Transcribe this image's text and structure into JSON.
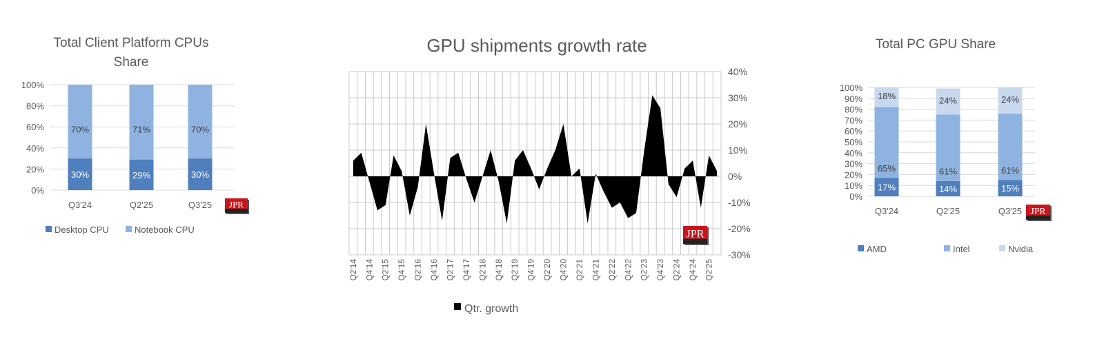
{
  "colors": {
    "dark_blue": "#4f7fbd",
    "mid_blue": "#8fb3e0",
    "light_blue": "#c7d8ef",
    "area": "#000000",
    "grid": "#c8c8c8",
    "logo_red": "#c8161d"
  },
  "logo_text": "JPR",
  "chart_data": [
    {
      "type": "bar",
      "stacked": true,
      "title": "Total Client Platform CPUs Share",
      "title_lines": [
        "Total Client Platform CPUs",
        "Share"
      ],
      "categories": [
        "Q3'24",
        "Q2'25",
        "Q3'25"
      ],
      "ylim": [
        0,
        100
      ],
      "yticks": [
        "0%",
        "20%",
        "40%",
        "60%",
        "80%",
        "100%"
      ],
      "grid": true,
      "legend_position": "bottom",
      "series": [
        {
          "name": "Desktop CPU",
          "values": [
            30,
            29,
            30
          ],
          "labels": [
            "30%",
            "29%",
            "30%"
          ],
          "color": "#4f7fbd"
        },
        {
          "name": "Notebook CPU",
          "values": [
            70,
            71,
            70
          ],
          "labels": [
            "70%",
            "71%",
            "70%"
          ],
          "color": "#8fb3e0"
        }
      ]
    },
    {
      "type": "area",
      "title": "GPU shipments growth rate",
      "x": [
        "Q2'14",
        "Q3'14",
        "Q4'14",
        "Q1'15",
        "Q2'15",
        "Q3'15",
        "Q4'15",
        "Q1'16",
        "Q2'16",
        "Q3'16",
        "Q4'16",
        "Q1'17",
        "Q2'17",
        "Q3'17",
        "Q4'17",
        "Q1'18",
        "Q2'18",
        "Q3'18",
        "Q4'18",
        "Q1'19",
        "Q2'19",
        "Q3'19",
        "Q4'19",
        "Q1'20",
        "Q2'20",
        "Q3'20",
        "Q4'20",
        "Q1'21",
        "Q2'21",
        "Q3'21",
        "Q4'21",
        "Q1'22",
        "Q2'22",
        "Q3'22",
        "Q4'22",
        "Q1'23",
        "Q2'23",
        "Q3'23",
        "Q4'23",
        "Q1'24",
        "Q2'24",
        "Q3'24",
        "Q4'24",
        "Q1'25",
        "Q2'25",
        "Q3'25"
      ],
      "xtick_labels": [
        "Q2'14",
        "Q4'14",
        "Q2'15",
        "Q4'15",
        "Q2'16",
        "Q4'16",
        "Q2'17",
        "Q4'17",
        "Q2'18",
        "Q4'18",
        "Q2'19",
        "Q4'19",
        "Q2'20",
        "Q4'20",
        "Q2'21",
        "Q4'21",
        "Q2'22",
        "Q4'22",
        "Q2'23",
        "Q4'23",
        "Q2'24",
        "Q4'24",
        "Q2'25"
      ],
      "ylim": [
        -30,
        40
      ],
      "yticks": [
        "-30%",
        "-20%",
        "-10%",
        "0%",
        "10%",
        "20%",
        "30%",
        "40%"
      ],
      "y_axis_side": "right",
      "grid": true,
      "legend_position": "bottom",
      "series": [
        {
          "name": "Qtr. growth",
          "values": [
            6,
            9,
            -2,
            -13,
            -11,
            8,
            2,
            -15,
            -4,
            20,
            1,
            -17,
            7,
            9,
            -1,
            -10,
            0,
            10,
            -2,
            -18,
            6,
            10,
            3,
            -5,
            3,
            10,
            20,
            0,
            3,
            -18,
            1,
            -6,
            -12,
            -10,
            -16,
            -14,
            10,
            31,
            26,
            -3,
            -8,
            3,
            6,
            -12,
            8,
            2
          ],
          "color": "#000000"
        }
      ]
    },
    {
      "type": "bar",
      "stacked": true,
      "title": "Total PC GPU Share",
      "categories": [
        "Q3'24",
        "Q2'25",
        "Q3'25"
      ],
      "ylim": [
        0,
        100
      ],
      "yticks": [
        "0%",
        "10%",
        "20%",
        "30%",
        "40%",
        "50%",
        "60%",
        "70%",
        "80%",
        "90%",
        "100%"
      ],
      "grid": true,
      "legend_position": "bottom",
      "series": [
        {
          "name": "AMD",
          "values": [
            17,
            14,
            15
          ],
          "labels": [
            "17%",
            "14%",
            "15%"
          ],
          "color": "#4f7fbd"
        },
        {
          "name": "Intel",
          "values": [
            65,
            61,
            61
          ],
          "labels": [
            "65%",
            "61%",
            "61%"
          ],
          "color": "#8fb3e0"
        },
        {
          "name": "Nvidia",
          "values": [
            18,
            24,
            24
          ],
          "labels": [
            "18%",
            "24%",
            "24%"
          ],
          "color": "#c7d8ef"
        }
      ]
    }
  ]
}
